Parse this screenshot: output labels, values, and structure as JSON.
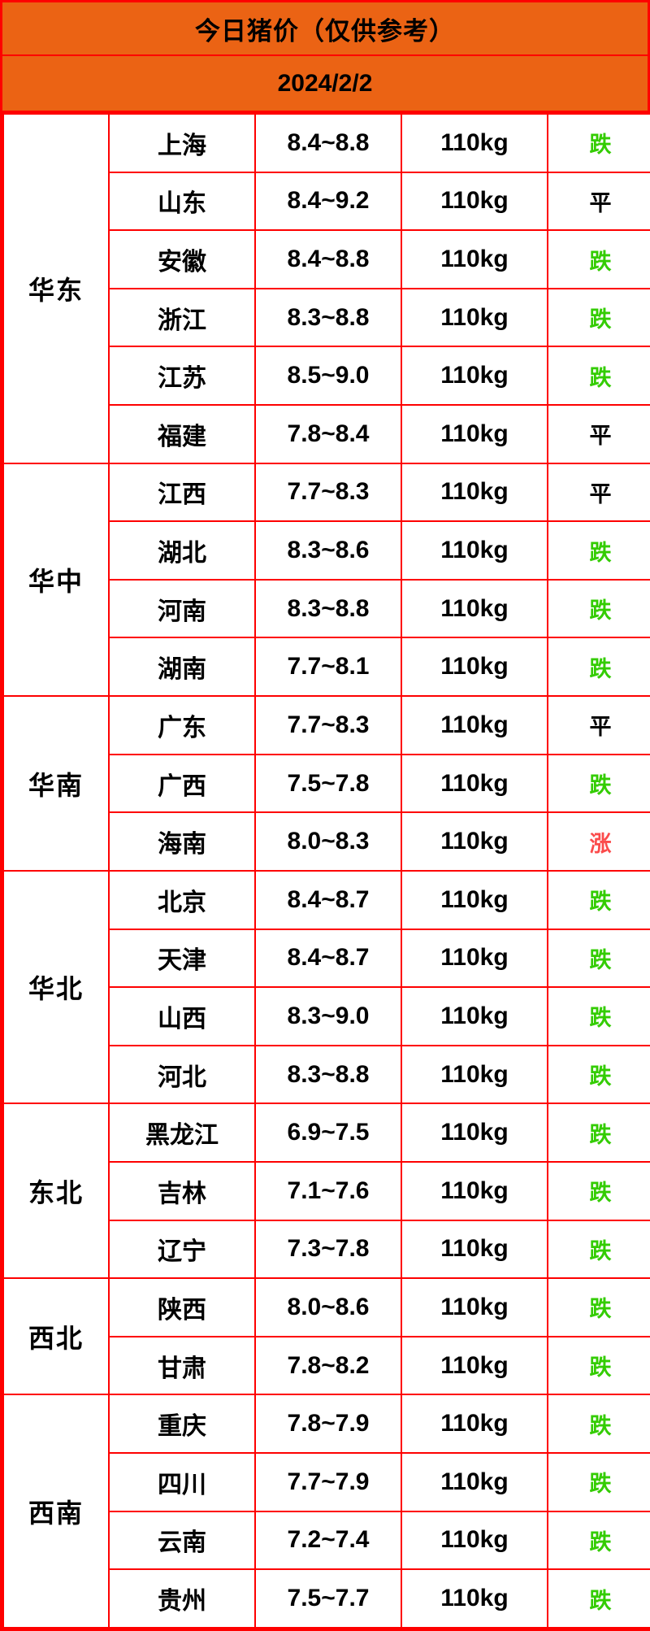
{
  "header": {
    "title": "今日猪价（仅供参考）",
    "date": "2024/2/2"
  },
  "colors": {
    "banner_bg": "#eb6314",
    "grid_border": "#fe0000",
    "trend_down": "#33cc00",
    "trend_flat": "#000000",
    "trend_up": "#fb4b4b"
  },
  "table": {
    "weight_label": "110kg",
    "regions": [
      {
        "name": "华东",
        "rows": [
          {
            "province": "上海",
            "price": "8.4~8.8",
            "weight": "110kg",
            "trend": "跌",
            "dir": "down"
          },
          {
            "province": "山东",
            "price": "8.4~9.2",
            "weight": "110kg",
            "trend": "平",
            "dir": "flat"
          },
          {
            "province": "安徽",
            "price": "8.4~8.8",
            "weight": "110kg",
            "trend": "跌",
            "dir": "down"
          },
          {
            "province": "浙江",
            "price": "8.3~8.8",
            "weight": "110kg",
            "trend": "跌",
            "dir": "down"
          },
          {
            "province": "江苏",
            "price": "8.5~9.0",
            "weight": "110kg",
            "trend": "跌",
            "dir": "down"
          },
          {
            "province": "福建",
            "price": "7.8~8.4",
            "weight": "110kg",
            "trend": "平",
            "dir": "flat"
          }
        ]
      },
      {
        "name": "华中",
        "rows": [
          {
            "province": "江西",
            "price": "7.7~8.3",
            "weight": "110kg",
            "trend": "平",
            "dir": "flat"
          },
          {
            "province": "湖北",
            "price": "8.3~8.6",
            "weight": "110kg",
            "trend": "跌",
            "dir": "down"
          },
          {
            "province": "河南",
            "price": "8.3~8.8",
            "weight": "110kg",
            "trend": "跌",
            "dir": "down"
          },
          {
            "province": "湖南",
            "price": "7.7~8.1",
            "weight": "110kg",
            "trend": "跌",
            "dir": "down"
          }
        ]
      },
      {
        "name": "华南",
        "rows": [
          {
            "province": "广东",
            "price": "7.7~8.3",
            "weight": "110kg",
            "trend": "平",
            "dir": "flat"
          },
          {
            "province": "广西",
            "price": "7.5~7.8",
            "weight": "110kg",
            "trend": "跌",
            "dir": "down"
          },
          {
            "province": "海南",
            "price": "8.0~8.3",
            "weight": "110kg",
            "trend": "涨",
            "dir": "up"
          }
        ]
      },
      {
        "name": "华北",
        "rows": [
          {
            "province": "北京",
            "price": "8.4~8.7",
            "weight": "110kg",
            "trend": "跌",
            "dir": "down"
          },
          {
            "province": "天津",
            "price": "8.4~8.7",
            "weight": "110kg",
            "trend": "跌",
            "dir": "down"
          },
          {
            "province": "山西",
            "price": "8.3~9.0",
            "weight": "110kg",
            "trend": "跌",
            "dir": "down"
          },
          {
            "province": "河北",
            "price": "8.3~8.8",
            "weight": "110kg",
            "trend": "跌",
            "dir": "down"
          }
        ]
      },
      {
        "name": "东北",
        "rows": [
          {
            "province": "黑龙江",
            "price": "6.9~7.5",
            "weight": "110kg",
            "trend": "跌",
            "dir": "down"
          },
          {
            "province": "吉林",
            "price": "7.1~7.6",
            "weight": "110kg",
            "trend": "跌",
            "dir": "down"
          },
          {
            "province": "辽宁",
            "price": "7.3~7.8",
            "weight": "110kg",
            "trend": "跌",
            "dir": "down"
          }
        ]
      },
      {
        "name": "西北",
        "rows": [
          {
            "province": "陕西",
            "price": "8.0~8.6",
            "weight": "110kg",
            "trend": "跌",
            "dir": "down"
          },
          {
            "province": "甘肃",
            "price": "7.8~8.2",
            "weight": "110kg",
            "trend": "跌",
            "dir": "down"
          }
        ]
      },
      {
        "name": "西南",
        "rows": [
          {
            "province": "重庆",
            "price": "7.8~7.9",
            "weight": "110kg",
            "trend": "跌",
            "dir": "down"
          },
          {
            "province": "四川",
            "price": "7.7~7.9",
            "weight": "110kg",
            "trend": "跌",
            "dir": "down"
          },
          {
            "province": "云南",
            "price": "7.2~7.4",
            "weight": "110kg",
            "trend": "跌",
            "dir": "down"
          },
          {
            "province": "贵州",
            "price": "7.5~7.7",
            "weight": "110kg",
            "trend": "跌",
            "dir": "down"
          }
        ]
      }
    ]
  }
}
